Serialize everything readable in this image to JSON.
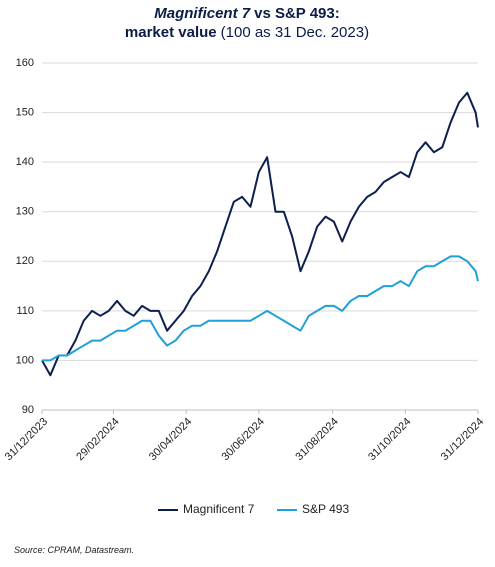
{
  "chart_data": {
    "type": "line",
    "title": [
      [
        {
          "text": "Magnificent 7",
          "style": "bold-italic"
        },
        {
          "text": "vs S&P 493:",
          "style": "bold"
        }
      ],
      [
        {
          "text": "market value",
          "style": "bold"
        },
        {
          "text": "(100 as 31 Dec. 2023)",
          "style": "normal"
        }
      ]
    ],
    "source": "Source: CPRAM, Datastream.",
    "x": [
      "31/12/2023",
      "07/01/2024",
      "14/01/2024",
      "21/01/2024",
      "28/01/2024",
      "04/02/2024",
      "11/02/2024",
      "18/02/2024",
      "25/02/2024",
      "03/03/2024",
      "10/03/2024",
      "17/03/2024",
      "24/03/2024",
      "31/03/2024",
      "07/04/2024",
      "14/04/2024",
      "21/04/2024",
      "28/04/2024",
      "05/05/2024",
      "12/05/2024",
      "19/05/2024",
      "26/05/2024",
      "02/06/2024",
      "09/06/2024",
      "16/06/2024",
      "23/06/2024",
      "30/06/2024",
      "07/07/2024",
      "14/07/2024",
      "21/07/2024",
      "28/07/2024",
      "04/08/2024",
      "11/08/2024",
      "18/08/2024",
      "25/08/2024",
      "01/09/2024",
      "08/09/2024",
      "15/09/2024",
      "22/09/2024",
      "29/09/2024",
      "06/10/2024",
      "13/10/2024",
      "20/10/2024",
      "27/10/2024",
      "03/11/2024",
      "10/11/2024",
      "17/11/2024",
      "24/11/2024",
      "01/12/2024",
      "08/12/2024",
      "15/12/2024",
      "22/12/2024",
      "29/12/2024",
      "31/12/2024"
    ],
    "series": [
      {
        "name": "Magnificent 7",
        "color": "#0d1f4e",
        "values": [
          100,
          97,
          101,
          101,
          104,
          108,
          110,
          109,
          110,
          112,
          110,
          109,
          111,
          110,
          110,
          106,
          108,
          110,
          113,
          115,
          118,
          122,
          127,
          132,
          133,
          131,
          138,
          141,
          130,
          130,
          125,
          118,
          122,
          127,
          129,
          128,
          124,
          128,
          131,
          133,
          134,
          136,
          137,
          138,
          137,
          142,
          144,
          142,
          143,
          148,
          152,
          154,
          150,
          147
        ]
      },
      {
        "name": "S&P 493",
        "color": "#1fa0d8",
        "values": [
          100,
          100,
          101,
          101,
          102,
          103,
          104,
          104,
          105,
          106,
          106,
          107,
          108,
          108,
          105,
          103,
          104,
          106,
          107,
          107,
          108,
          108,
          108,
          108,
          108,
          108,
          109,
          110,
          109,
          108,
          107,
          106,
          109,
          110,
          111,
          111,
          110,
          112,
          113,
          113,
          114,
          115,
          115,
          116,
          115,
          118,
          119,
          119,
          120,
          121,
          121,
          120,
          118,
          116
        ]
      }
    ],
    "xlim": [
      "31/12/2023",
      "31/12/2024"
    ],
    "xticks": [
      "31/12/2023",
      "29/02/2024",
      "30/04/2024",
      "30/06/2024",
      "31/08/2024",
      "31/10/2024",
      "31/12/2024"
    ],
    "ylim": [
      90,
      160
    ],
    "yticks": [
      90,
      100,
      110,
      120,
      130,
      140,
      150,
      160
    ],
    "grid": true,
    "legend": "bottom"
  }
}
